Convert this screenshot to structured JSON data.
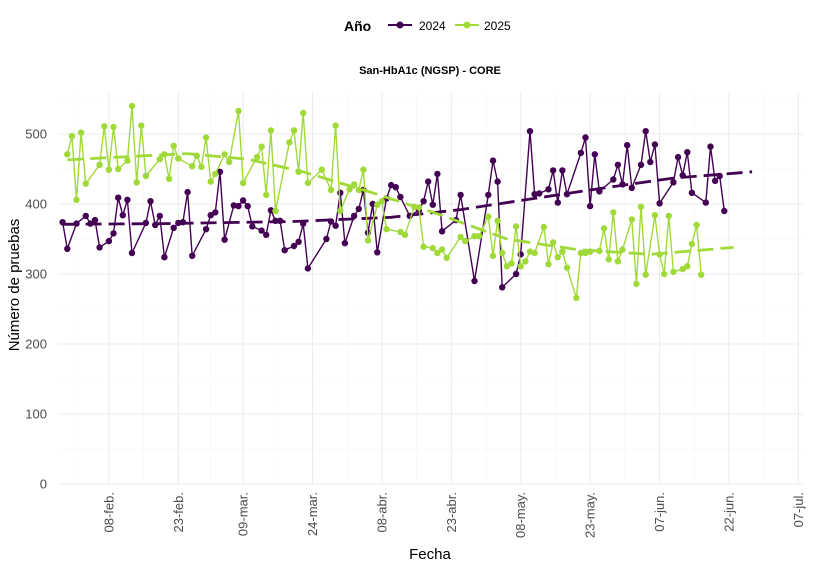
{
  "colors": {
    "2024": "#440154",
    "2025": "#a0da39",
    "grid_major": "#ebebeb",
    "grid_minor": "#f5f5f5"
  },
  "chart_data": {
    "type": "line",
    "title": "San-HbA1c (NGSP) - CORE",
    "xlabel": "Fecha",
    "ylabel": "Número de pruebas",
    "legend": {
      "title": "Año",
      "position": "top",
      "entries": [
        "2024",
        "2025"
      ]
    },
    "x_axis": {
      "type": "date",
      "range": [
        "2025-01-28",
        "2025-07-08"
      ],
      "ticks": [
        "2025-02-08",
        "2025-02-23",
        "2025-03-09",
        "2025-03-24",
        "2025-04-08",
        "2025-04-23",
        "2025-05-08",
        "2025-05-23",
        "2025-06-07",
        "2025-06-22",
        "2025-07-07"
      ],
      "tick_labels": [
        "08-feb.",
        "23-feb.",
        "09-mar.",
        "24-mar.",
        "08-abr.",
        "23-abr.",
        "08-may.",
        "23-may.",
        "07-jun.",
        "22-jun.",
        "07-jul."
      ]
    },
    "y_axis": {
      "range": [
        0,
        560
      ],
      "ticks": [
        0,
        100,
        200,
        300,
        400,
        500
      ],
      "tick_labels": [
        "0",
        "100",
        "200",
        "300",
        "400",
        "500"
      ]
    },
    "grid": true,
    "series": [
      {
        "name": "2024",
        "color": "#440154",
        "trend": [
          [
            "2025-01-29",
            371
          ],
          [
            "2025-02-20",
            372
          ],
          [
            "2025-03-20",
            375
          ],
          [
            "2025-04-10",
            381
          ],
          [
            "2025-04-25",
            392
          ],
          [
            "2025-05-08",
            405
          ],
          [
            "2025-05-25",
            422
          ],
          [
            "2025-06-10",
            437
          ],
          [
            "2025-06-27",
            446
          ]
        ],
        "points": [
          [
            "2025-01-29",
            374
          ],
          [
            "2025-01-30",
            336
          ],
          [
            "2025-02-01",
            372
          ],
          [
            "2025-02-03",
            383
          ],
          [
            "2025-02-04",
            372
          ],
          [
            "2025-02-05",
            377
          ],
          [
            "2025-02-06",
            338
          ],
          [
            "2025-02-08",
            347
          ],
          [
            "2025-02-09",
            358
          ],
          [
            "2025-02-10",
            409
          ],
          [
            "2025-02-11",
            384
          ],
          [
            "2025-02-12",
            406
          ],
          [
            "2025-02-13",
            330
          ],
          [
            "2025-02-16",
            373
          ],
          [
            "2025-02-17",
            404
          ],
          [
            "2025-02-18",
            370
          ],
          [
            "2025-02-19",
            383
          ],
          [
            "2025-02-20",
            324
          ],
          [
            "2025-02-22",
            366
          ],
          [
            "2025-02-23",
            373
          ],
          [
            "2025-02-24",
            374
          ],
          [
            "2025-02-25",
            417
          ],
          [
            "2025-02-26",
            326
          ],
          [
            "2025-03-01",
            364
          ],
          [
            "2025-03-02",
            384
          ],
          [
            "2025-03-03",
            388
          ],
          [
            "2025-03-04",
            446
          ],
          [
            "2025-03-05",
            349
          ],
          [
            "2025-03-07",
            398
          ],
          [
            "2025-03-08",
            397
          ],
          [
            "2025-03-09",
            405
          ],
          [
            "2025-03-10",
            397
          ],
          [
            "2025-03-11",
            368
          ],
          [
            "2025-03-13",
            362
          ],
          [
            "2025-03-14",
            356
          ],
          [
            "2025-03-15",
            391
          ],
          [
            "2025-03-16",
            376
          ],
          [
            "2025-03-17",
            376
          ],
          [
            "2025-03-18",
            334
          ],
          [
            "2025-03-20",
            340
          ],
          [
            "2025-03-21",
            346
          ],
          [
            "2025-03-22",
            372
          ],
          [
            "2025-03-23",
            308
          ],
          [
            "2025-03-27",
            350
          ],
          [
            "2025-03-28",
            375
          ],
          [
            "2025-03-29",
            369
          ],
          [
            "2025-03-30",
            416
          ],
          [
            "2025-03-31",
            344
          ],
          [
            "2025-04-02",
            383
          ],
          [
            "2025-04-03",
            393
          ],
          [
            "2025-04-04",
            420
          ],
          [
            "2025-04-05",
            359
          ],
          [
            "2025-04-06",
            400
          ],
          [
            "2025-04-07",
            331
          ],
          [
            "2025-04-09",
            408
          ],
          [
            "2025-04-10",
            427
          ],
          [
            "2025-04-11",
            424
          ],
          [
            "2025-04-12",
            410
          ],
          [
            "2025-04-14",
            383
          ],
          [
            "2025-04-16",
            391
          ],
          [
            "2025-04-17",
            404
          ],
          [
            "2025-04-18",
            432
          ],
          [
            "2025-04-19",
            399
          ],
          [
            "2025-04-20",
            443
          ],
          [
            "2025-04-21",
            361
          ],
          [
            "2025-04-24",
            377
          ],
          [
            "2025-04-25",
            413
          ],
          [
            "2025-04-28",
            290
          ],
          [
            "2025-05-01",
            413
          ],
          [
            "2025-05-02",
            462
          ],
          [
            "2025-05-03",
            432
          ],
          [
            "2025-05-04",
            281
          ],
          [
            "2025-05-07",
            300
          ],
          [
            "2025-05-08",
            328
          ],
          [
            "2025-05-10",
            504
          ],
          [
            "2025-05-11",
            414
          ],
          [
            "2025-05-12",
            415
          ],
          [
            "2025-05-14",
            421
          ],
          [
            "2025-05-15",
            448
          ],
          [
            "2025-05-16",
            402
          ],
          [
            "2025-05-17",
            448
          ],
          [
            "2025-05-18",
            414
          ],
          [
            "2025-05-21",
            473
          ],
          [
            "2025-05-22",
            495
          ],
          [
            "2025-05-23",
            397
          ],
          [
            "2025-05-24",
            471
          ],
          [
            "2025-05-25",
            418
          ],
          [
            "2025-05-28",
            435
          ],
          [
            "2025-05-29",
            456
          ],
          [
            "2025-05-30",
            428
          ],
          [
            "2025-05-31",
            484
          ],
          [
            "2025-06-01",
            423
          ],
          [
            "2025-06-03",
            456
          ],
          [
            "2025-06-04",
            504
          ],
          [
            "2025-06-05",
            460
          ],
          [
            "2025-06-06",
            485
          ],
          [
            "2025-06-07",
            401
          ],
          [
            "2025-06-10",
            431
          ],
          [
            "2025-06-11",
            467
          ],
          [
            "2025-06-12",
            441
          ],
          [
            "2025-06-13",
            474
          ],
          [
            "2025-06-14",
            416
          ],
          [
            "2025-06-17",
            402
          ],
          [
            "2025-06-18",
            482
          ],
          [
            "2025-06-19",
            433
          ],
          [
            "2025-06-20",
            440
          ],
          [
            "2025-06-21",
            390
          ]
        ]
      },
      {
        "name": "2025",
        "color": "#a0da39",
        "trend": [
          [
            "2025-01-30",
            463
          ],
          [
            "2025-02-10",
            467
          ],
          [
            "2025-02-25",
            472
          ],
          [
            "2025-03-10",
            464
          ],
          [
            "2025-03-22",
            446
          ],
          [
            "2025-04-05",
            418
          ],
          [
            "2025-04-20",
            386
          ],
          [
            "2025-05-05",
            350
          ],
          [
            "2025-05-20",
            335
          ],
          [
            "2025-06-05",
            328
          ],
          [
            "2025-06-23",
            338
          ]
        ],
        "points": [
          [
            "2025-01-30",
            471
          ],
          [
            "2025-01-31",
            497
          ],
          [
            "2025-02-01",
            406
          ],
          [
            "2025-02-02",
            502
          ],
          [
            "2025-02-03",
            429
          ],
          [
            "2025-02-06",
            456
          ],
          [
            "2025-02-07",
            511
          ],
          [
            "2025-02-08",
            449
          ],
          [
            "2025-02-09",
            510
          ],
          [
            "2025-02-10",
            450
          ],
          [
            "2025-02-12",
            462
          ],
          [
            "2025-02-13",
            540
          ],
          [
            "2025-02-14",
            431
          ],
          [
            "2025-02-15",
            512
          ],
          [
            "2025-02-16",
            440
          ],
          [
            "2025-02-19",
            464
          ],
          [
            "2025-02-20",
            471
          ],
          [
            "2025-02-21",
            436
          ],
          [
            "2025-02-22",
            483
          ],
          [
            "2025-02-23",
            465
          ],
          [
            "2025-02-26",
            454
          ],
          [
            "2025-02-27",
            469
          ],
          [
            "2025-02-28",
            453
          ],
          [
            "2025-03-01",
            495
          ],
          [
            "2025-03-02",
            432
          ],
          [
            "2025-03-03",
            443
          ],
          [
            "2025-03-05",
            471
          ],
          [
            "2025-03-06",
            460
          ],
          [
            "2025-03-08",
            533
          ],
          [
            "2025-03-09",
            430
          ],
          [
            "2025-03-12",
            467
          ],
          [
            "2025-03-13",
            482
          ],
          [
            "2025-03-14",
            413
          ],
          [
            "2025-03-15",
            505
          ],
          [
            "2025-03-16",
            390
          ],
          [
            "2025-03-19",
            488
          ],
          [
            "2025-03-20",
            505
          ],
          [
            "2025-03-21",
            446
          ],
          [
            "2025-03-22",
            530
          ],
          [
            "2025-03-23",
            430
          ],
          [
            "2025-03-26",
            449
          ],
          [
            "2025-03-28",
            420
          ],
          [
            "2025-03-29",
            512
          ],
          [
            "2025-03-30",
            390
          ],
          [
            "2025-04-01",
            421
          ],
          [
            "2025-04-02",
            428
          ],
          [
            "2025-04-03",
            420
          ],
          [
            "2025-04-04",
            449
          ],
          [
            "2025-04-05",
            348
          ],
          [
            "2025-04-07",
            399
          ],
          [
            "2025-04-08",
            404
          ],
          [
            "2025-04-09",
            364
          ],
          [
            "2025-04-12",
            360
          ],
          [
            "2025-04-13",
            356
          ],
          [
            "2025-04-15",
            396
          ],
          [
            "2025-04-16",
            395
          ],
          [
            "2025-04-17",
            339
          ],
          [
            "2025-04-19",
            337
          ],
          [
            "2025-04-20",
            330
          ],
          [
            "2025-04-21",
            335
          ],
          [
            "2025-04-22",
            323
          ],
          [
            "2025-04-25",
            353
          ],
          [
            "2025-04-26",
            347
          ],
          [
            "2025-04-28",
            354
          ],
          [
            "2025-04-29",
            354
          ],
          [
            "2025-05-01",
            382
          ],
          [
            "2025-05-02",
            326
          ],
          [
            "2025-05-03",
            376
          ],
          [
            "2025-05-04",
            330
          ],
          [
            "2025-05-05",
            311
          ],
          [
            "2025-05-06",
            315
          ],
          [
            "2025-05-07",
            368
          ],
          [
            "2025-05-08",
            311
          ],
          [
            "2025-05-09",
            318
          ],
          [
            "2025-05-10",
            332
          ],
          [
            "2025-05-11",
            330
          ],
          [
            "2025-05-13",
            367
          ],
          [
            "2025-05-14",
            314
          ],
          [
            "2025-05-15",
            345
          ],
          [
            "2025-05-16",
            324
          ],
          [
            "2025-05-17",
            332
          ],
          [
            "2025-05-18",
            309
          ],
          [
            "2025-05-20",
            266
          ],
          [
            "2025-05-21",
            330
          ],
          [
            "2025-05-22",
            330
          ],
          [
            "2025-05-23",
            332
          ],
          [
            "2025-05-25",
            333
          ],
          [
            "2025-05-26",
            365
          ],
          [
            "2025-05-27",
            321
          ],
          [
            "2025-05-28",
            388
          ],
          [
            "2025-05-29",
            318
          ],
          [
            "2025-05-30",
            335
          ],
          [
            "2025-06-01",
            378
          ],
          [
            "2025-06-02",
            286
          ],
          [
            "2025-06-03",
            396
          ],
          [
            "2025-06-04",
            299
          ],
          [
            "2025-06-06",
            384
          ],
          [
            "2025-06-07",
            328
          ],
          [
            "2025-06-08",
            300
          ],
          [
            "2025-06-09",
            383
          ],
          [
            "2025-06-10",
            303
          ],
          [
            "2025-06-12",
            307
          ],
          [
            "2025-06-13",
            311
          ],
          [
            "2025-06-14",
            343
          ],
          [
            "2025-06-15",
            370
          ],
          [
            "2025-06-16",
            299
          ]
        ]
      }
    ]
  }
}
